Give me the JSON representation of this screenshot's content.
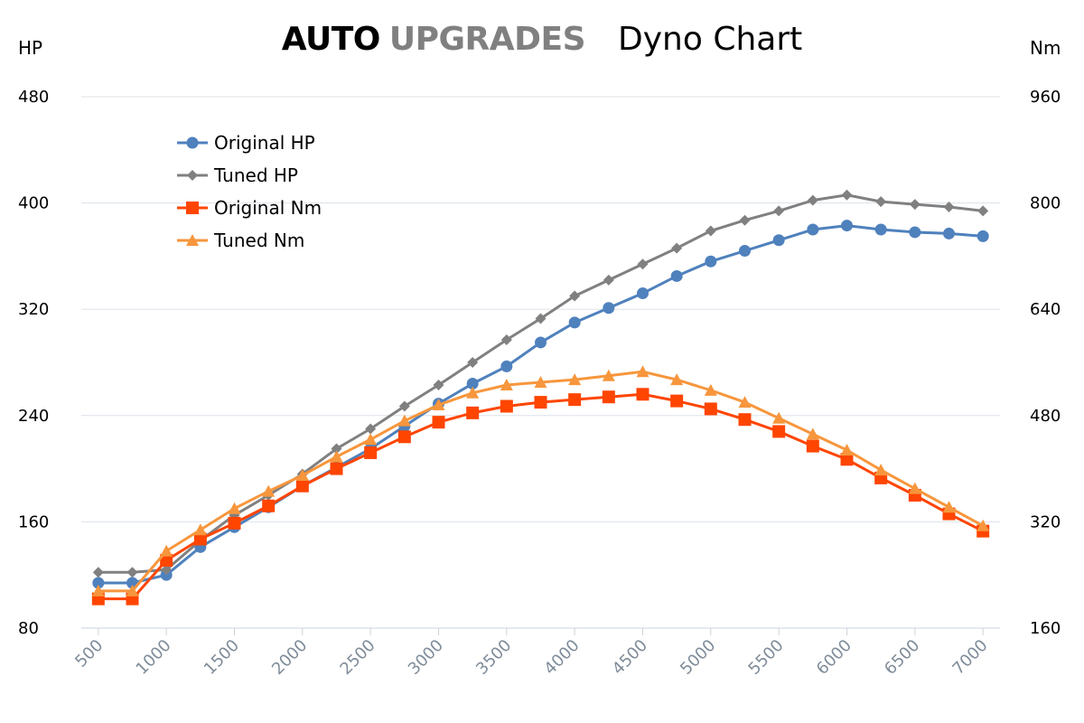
{
  "header": {
    "brand_bold": "AUTO",
    "brand_light": "UPGRADES",
    "title": "Dyno Chart"
  },
  "chart_data": {
    "type": "line",
    "left_axis": {
      "unit": "HP",
      "ticks": [
        80,
        160,
        240,
        320,
        400,
        480
      ],
      "range": [
        80,
        480
      ]
    },
    "right_axis": {
      "unit": "Nm",
      "ticks": [
        160,
        320,
        480,
        640,
        800,
        960
      ],
      "range": [
        160,
        960
      ]
    },
    "x_ticks": [
      500,
      1000,
      1500,
      2000,
      2500,
      3000,
      3500,
      4000,
      4500,
      5000,
      5500,
      6000,
      6500,
      7000
    ],
    "x": [
      500,
      750,
      1000,
      1250,
      1500,
      1750,
      2000,
      2250,
      2500,
      2750,
      3000,
      3250,
      3500,
      3750,
      4000,
      4250,
      4500,
      4750,
      5000,
      5250,
      5500,
      5750,
      6000,
      6250,
      6500,
      6750,
      7000
    ],
    "xlim": [
      375,
      7125
    ],
    "grid": true,
    "legend_position": "top-left",
    "series": [
      {
        "name": "Original HP",
        "axis": "left",
        "color": "#4f81bd",
        "marker": "circle",
        "values": [
          114,
          114,
          120,
          141,
          156,
          171,
          187,
          201,
          215,
          232,
          249,
          264,
          277,
          295,
          310,
          321,
          332,
          345,
          356,
          364,
          372,
          380,
          383,
          380,
          378,
          377,
          375
        ]
      },
      {
        "name": "Tuned HP",
        "axis": "left",
        "color": "#808080",
        "marker": "diamond",
        "values": [
          122,
          122,
          124,
          146,
          165,
          180,
          196,
          215,
          230,
          247,
          263,
          280,
          297,
          313,
          330,
          342,
          354,
          366,
          379,
          387,
          394,
          402,
          406,
          401,
          399,
          397,
          394
        ]
      },
      {
        "name": "Original Nm",
        "axis": "right",
        "color": "#ff4500",
        "marker": "square",
        "values": [
          204,
          204,
          262,
          294,
          318,
          344,
          374,
          400,
          424,
          448,
          470,
          484,
          494,
          500,
          504,
          508,
          512,
          502,
          490,
          474,
          456,
          434,
          414,
          386,
          360,
          332,
          306
        ]
      },
      {
        "name": "Tuned Nm",
        "axis": "right",
        "color": "#f7963c",
        "marker": "triangle",
        "values": [
          216,
          216,
          276,
          308,
          340,
          366,
          390,
          418,
          444,
          472,
          496,
          514,
          526,
          530,
          534,
          540,
          546,
          534,
          518,
          500,
          476,
          452,
          428,
          398,
          370,
          342,
          314
        ]
      }
    ]
  }
}
